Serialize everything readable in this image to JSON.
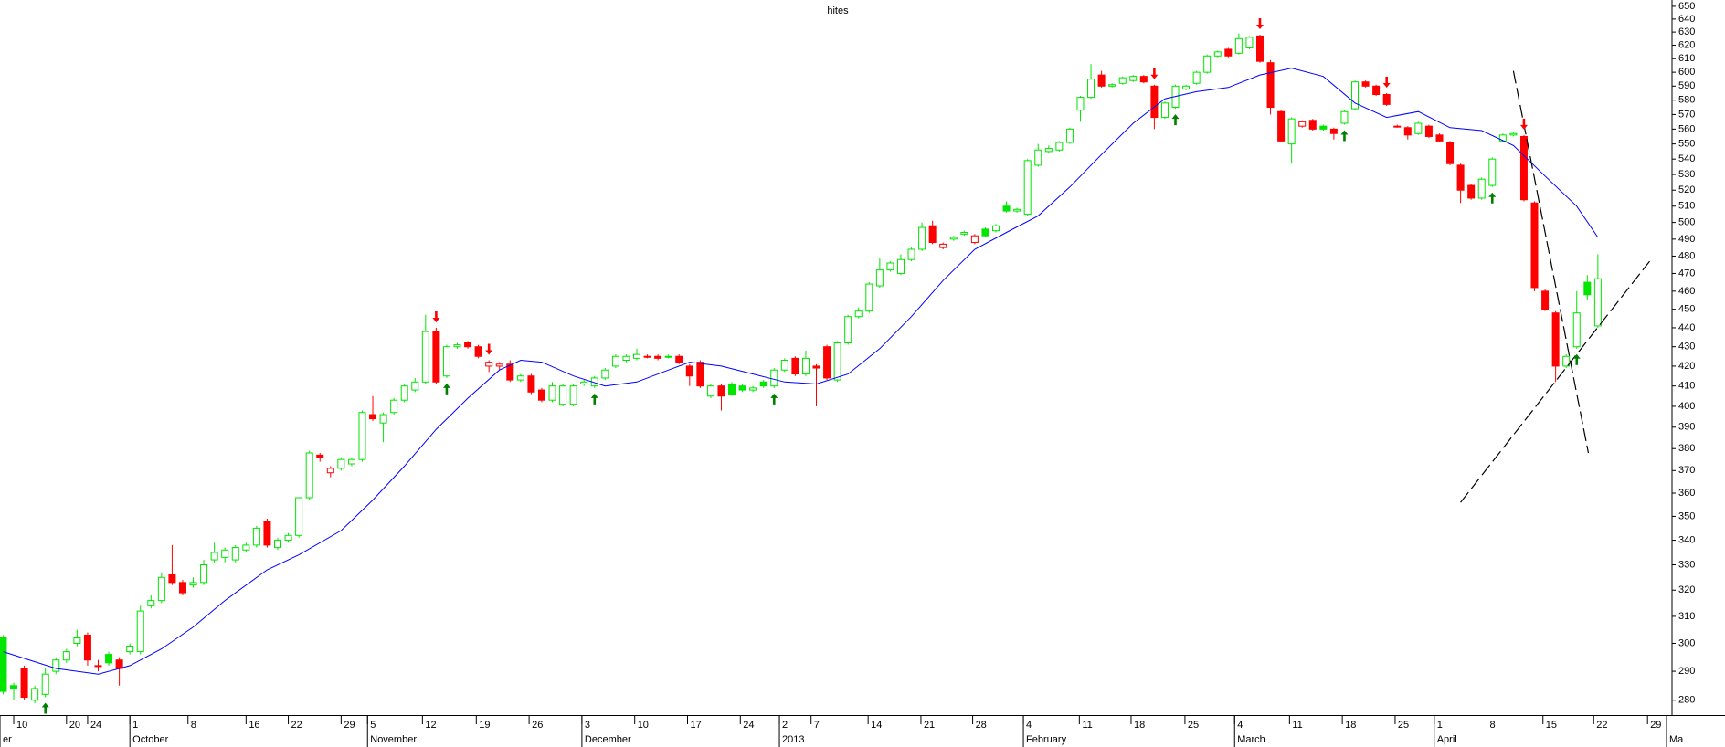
{
  "chart_data": {
    "type": "candlestick",
    "title": "hites",
    "log_y": true,
    "xlim": [
      -0.3,
      157.5
    ],
    "ylim": [
      275,
      655
    ],
    "yticks": [
      280,
      290,
      300,
      310,
      320,
      330,
      340,
      350,
      360,
      370,
      380,
      390,
      400,
      410,
      420,
      430,
      440,
      450,
      460,
      470,
      480,
      490,
      500,
      510,
      520,
      530,
      540,
      550,
      560,
      570,
      580,
      590,
      600,
      610,
      620,
      630,
      640,
      650
    ],
    "xticks": [
      {
        "value": 1,
        "label": "10"
      },
      {
        "value": 6,
        "label": "20"
      },
      {
        "value": 8,
        "label": "24"
      },
      {
        "value": 12,
        "label": "1"
      },
      {
        "value": 17.5,
        "label": "8"
      },
      {
        "value": 23,
        "label": "16"
      },
      {
        "value": 27,
        "label": "22"
      },
      {
        "value": 32,
        "label": "29"
      },
      {
        "value": 34.5,
        "label": "5"
      },
      {
        "value": 39.7,
        "label": "12"
      },
      {
        "value": 44.8,
        "label": "19"
      },
      {
        "value": 49.8,
        "label": "26"
      },
      {
        "value": 54.8,
        "label": "3"
      },
      {
        "value": 59.8,
        "label": "10"
      },
      {
        "value": 64.8,
        "label": "17"
      },
      {
        "value": 69.8,
        "label": "24"
      },
      {
        "value": 73.5,
        "label": "2"
      },
      {
        "value": 76.5,
        "label": "7"
      },
      {
        "value": 81.9,
        "label": "14"
      },
      {
        "value": 86.9,
        "label": "21"
      },
      {
        "value": 91.8,
        "label": "28"
      },
      {
        "value": 96.6,
        "label": "4"
      },
      {
        "value": 101.9,
        "label": "11"
      },
      {
        "value": 106.8,
        "label": "18"
      },
      {
        "value": 111.9,
        "label": "25"
      },
      {
        "value": 116.6,
        "label": "4"
      },
      {
        "value": 121.8,
        "label": "11"
      },
      {
        "value": 126.8,
        "label": "18"
      },
      {
        "value": 131.8,
        "label": "25"
      },
      {
        "value": 135.5,
        "label": "1"
      },
      {
        "value": 140.5,
        "label": "8"
      },
      {
        "value": 145.8,
        "label": "15"
      },
      {
        "value": 150.6,
        "label": "22"
      },
      {
        "value": 155.7,
        "label": "29"
      }
    ],
    "month_ticks": [
      {
        "value": -0.3,
        "label": "er"
      },
      {
        "value": 12,
        "label": "October"
      },
      {
        "value": 34.5,
        "label": "November"
      },
      {
        "value": 54.8,
        "label": "December"
      },
      {
        "value": 73.5,
        "label": "2013"
      },
      {
        "value": 96.6,
        "label": "February"
      },
      {
        "value": 116.6,
        "label": "March"
      },
      {
        "value": 135.5,
        "label": "April"
      },
      {
        "value": 157.5,
        "label": "Ma"
      }
    ],
    "up_color": "#00e600",
    "down_color": "#ff0000",
    "x": [
      0,
      1,
      2,
      3,
      4,
      5,
      6,
      7,
      8,
      9,
      10,
      11,
      12,
      13,
      14,
      15,
      16,
      17,
      18,
      19,
      20,
      21,
      22,
      23,
      24,
      25,
      26,
      27,
      28,
      29,
      30,
      31,
      32,
      33,
      34,
      35,
      36,
      37,
      38,
      39,
      40,
      41,
      42,
      43,
      44,
      45,
      46,
      47,
      48,
      49,
      50,
      51,
      52,
      53,
      54,
      55,
      56,
      57,
      58,
      59,
      60,
      61,
      62,
      63,
      64,
      65,
      66,
      67,
      68,
      69,
      70,
      71,
      72,
      73,
      74,
      75,
      76,
      77,
      78,
      79,
      80,
      81,
      82,
      83,
      84,
      85,
      86,
      87,
      88,
      89,
      90,
      91,
      92,
      93,
      94,
      95,
      96,
      97,
      98,
      99,
      100,
      101,
      102,
      103,
      104,
      105,
      106,
      107,
      108,
      109,
      110,
      111,
      112,
      113,
      114,
      115,
      116,
      117,
      118,
      119,
      120,
      121,
      122,
      123,
      124,
      125,
      126,
      127,
      128,
      129,
      130,
      131,
      132,
      133,
      134,
      135,
      136,
      137,
      138,
      139,
      140,
      141,
      142,
      143,
      144,
      145,
      146,
      147,
      148,
      149,
      150,
      151
    ],
    "open": [
      302,
      285,
      291,
      280,
      282,
      290,
      294,
      300,
      303,
      292,
      296,
      294,
      297,
      297,
      314,
      316,
      326,
      323,
      322,
      323,
      332,
      333,
      332,
      336,
      338,
      348,
      337,
      340,
      342,
      358,
      377,
      369,
      371,
      373,
      375,
      396,
      392,
      397,
      403,
      408,
      412,
      438,
      415,
      430,
      432,
      430,
      420,
      420,
      421,
      413,
      415,
      408,
      403,
      401,
      401,
      411,
      410,
      414,
      420,
      423,
      424,
      425,
      425,
      425,
      425,
      420,
      422,
      405,
      410,
      411,
      410,
      408,
      412,
      410,
      418,
      424,
      416,
      420,
      430,
      413,
      432,
      446,
      449,
      463,
      472,
      470,
      478,
      484,
      498,
      485,
      490,
      493,
      488,
      496,
      495,
      510,
      507,
      505,
      536,
      545,
      546,
      551,
      573,
      582,
      598,
      590,
      592,
      594,
      597,
      590,
      568,
      575,
      588,
      592,
      600,
      612,
      617,
      614,
      618,
      627,
      607,
      572,
      550,
      562,
      566,
      562,
      560,
      564,
      574,
      593,
      590,
      584,
      562,
      561,
      557,
      562,
      556,
      551,
      536,
      523,
      515,
      523,
      552,
      556,
      555,
      512,
      460,
      448,
      420,
      430,
      465,
      441
    ],
    "high": [
      303,
      286,
      292,
      285,
      291,
      295,
      298,
      305,
      304,
      294,
      297,
      295,
      300,
      314,
      318,
      327,
      338,
      324,
      325,
      332,
      339,
      337,
      338,
      339,
      346,
      349,
      341,
      343,
      358,
      379,
      378,
      372,
      376,
      376,
      398,
      405,
      397,
      404,
      411,
      414,
      447,
      440,
      431,
      432,
      433,
      431,
      423,
      422,
      423,
      416,
      416,
      409,
      412,
      411,
      411,
      413,
      415,
      419,
      426,
      426,
      429,
      426,
      426,
      426,
      426,
      421,
      423,
      411,
      411,
      412,
      411,
      410,
      413,
      419,
      424,
      425,
      428,
      421,
      431,
      433,
      447,
      451,
      465,
      479,
      477,
      481,
      485,
      500,
      501,
      488,
      492,
      495,
      493,
      497,
      499,
      513,
      509,
      540,
      550,
      549,
      552,
      561,
      583,
      606,
      601,
      592,
      597,
      598,
      598,
      591,
      579,
      591,
      591,
      601,
      613,
      616,
      618,
      629,
      627,
      628,
      609,
      573,
      568,
      566,
      567,
      563,
      561,
      573,
      594,
      594,
      591,
      585,
      563,
      562,
      565,
      563,
      557,
      552,
      537,
      524,
      528,
      541,
      557,
      558,
      556,
      513,
      461,
      449,
      426,
      460,
      469,
      481
    ],
    "low": [
      282,
      280,
      280,
      279,
      281,
      289,
      293,
      299,
      292,
      290,
      292,
      285,
      296,
      296,
      313,
      315,
      322,
      318,
      321,
      322,
      331,
      331,
      331,
      335,
      337,
      337,
      336,
      339,
      341,
      357,
      374,
      367,
      370,
      372,
      374,
      393,
      383,
      396,
      402,
      407,
      411,
      411,
      414,
      429,
      429,
      424,
      417,
      418,
      412,
      412,
      406,
      402,
      402,
      400,
      400,
      410,
      409,
      413,
      419,
      422,
      423,
      424,
      423,
      424,
      421,
      410,
      409,
      404,
      398,
      405,
      407,
      407,
      409,
      409,
      417,
      415,
      415,
      400,
      413,
      412,
      431,
      445,
      448,
      462,
      471,
      469,
      477,
      483,
      487,
      484,
      489,
      492,
      487,
      491,
      494,
      506,
      506,
      504,
      535,
      544,
      545,
      550,
      565,
      581,
      589,
      589,
      591,
      593,
      592,
      560,
      567,
      574,
      587,
      591,
      599,
      611,
      611,
      613,
      617,
      607,
      570,
      551,
      537,
      561,
      559,
      559,
      553,
      563,
      573,
      589,
      583,
      576,
      561,
      553,
      556,
      554,
      551,
      536,
      512,
      514,
      514,
      522,
      551,
      555,
      513,
      460,
      449,
      412,
      419,
      429,
      455,
      440
    ],
    "close": [
      283,
      284,
      281,
      284,
      289,
      294,
      297,
      302,
      294,
      292,
      293,
      291,
      299,
      312,
      316,
      325,
      323,
      319,
      323,
      330,
      335,
      336,
      337,
      338,
      345,
      338,
      340,
      342,
      358,
      378,
      376,
      371,
      375,
      375,
      397,
      394,
      396,
      403,
      410,
      412,
      438,
      412,
      430,
      431,
      430,
      425,
      422,
      421,
      413,
      415,
      407,
      403,
      410,
      410,
      410,
      412,
      414,
      418,
      425,
      425,
      426,
      425,
      424,
      425,
      422,
      415,
      410,
      410,
      405,
      406,
      408,
      409,
      410,
      418,
      423,
      416,
      424,
      419,
      414,
      432,
      446,
      449,
      464,
      472,
      476,
      478,
      484,
      497,
      488,
      487,
      491,
      494,
      492,
      492,
      498,
      507,
      508,
      539,
      546,
      547,
      551,
      560,
      582,
      595,
      590,
      591,
      596,
      597,
      593,
      568,
      578,
      590,
      590,
      600,
      612,
      615,
      612,
      625,
      626,
      608,
      575,
      552,
      567,
      565,
      560,
      560,
      557,
      572,
      593,
      590,
      584,
      577,
      562,
      556,
      564,
      555,
      552,
      537,
      520,
      515,
      527,
      540,
      556,
      557,
      514,
      462,
      450,
      420,
      425,
      448,
      458,
      467
    ],
    "ma": {
      "color": "#0000ff",
      "x": [
        0,
        5,
        9,
        12,
        15,
        18,
        21,
        25,
        28,
        32,
        35,
        38,
        41,
        44,
        47,
        49,
        51,
        54,
        57,
        60,
        63,
        65,
        68,
        71,
        74,
        77,
        80,
        83,
        86,
        89,
        92,
        95,
        98,
        101,
        104,
        107,
        110,
        113,
        116,
        119,
        122,
        125,
        128,
        131,
        134,
        137,
        140,
        143,
        146,
        149,
        151
      ],
      "values": [
        297,
        291,
        289,
        292,
        298,
        306,
        316,
        328,
        334,
        344,
        357,
        372,
        389,
        404,
        418,
        423,
        422,
        415,
        410,
        412,
        418,
        422,
        420,
        416,
        412,
        411,
        416,
        429,
        446,
        466,
        484,
        494,
        504,
        522,
        543,
        564,
        581,
        586,
        589,
        598,
        603,
        597,
        578,
        568,
        572,
        561,
        559,
        549,
        529,
        510,
        491
      ]
    },
    "signals": {
      "up": [
        4,
        42,
        56,
        73,
        111,
        127,
        141,
        149
      ],
      "down": [
        41,
        46,
        109,
        119,
        131,
        144
      ],
      "up_color": "#008000",
      "down_color": "#ff0000"
    },
    "trendlines": [
      {
        "x": [
          143.0,
          150.1
        ],
        "values": [
          601,
          378
        ]
      },
      {
        "x": [
          138.0,
          155.9
        ],
        "values": [
          356,
          477
        ]
      }
    ],
    "trendline_color": "#000000"
  }
}
